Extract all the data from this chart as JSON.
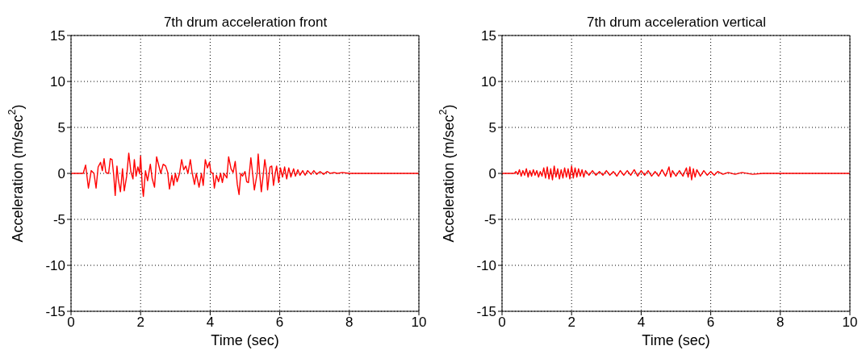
{
  "chart_data": [
    {
      "type": "line",
      "title": "7th drum acceleration front",
      "xlabel": "Time (sec)",
      "ylabel": "Acceleration (m/sec$^{2}$)",
      "xlim": [
        0,
        10
      ],
      "ylim": [
        -15,
        15
      ],
      "xticks": [
        0,
        2,
        4,
        6,
        8,
        10
      ],
      "yticks": [
        -15,
        -10,
        -5,
        0,
        5,
        10,
        15
      ],
      "grid": true,
      "marker": "none",
      "line_style": "solid",
      "series": [
        {
          "color": "#ff0000",
          "x": [
            0,
            0.35,
            0.42,
            0.5,
            0.58,
            0.66,
            0.72,
            0.78,
            0.85,
            0.9,
            0.95,
            1.0,
            1.08,
            1.13,
            1.18,
            1.23,
            1.27,
            1.32,
            1.36,
            1.42,
            1.48,
            1.53,
            1.6,
            1.66,
            1.72,
            1.78,
            1.82,
            1.87,
            1.92,
            1.97,
            2.0,
            2.05,
            2.08,
            2.14,
            2.2,
            2.28,
            2.33,
            2.4,
            2.46,
            2.52,
            2.58,
            2.65,
            2.72,
            2.78,
            2.83,
            2.9,
            2.95,
            3.0,
            3.05,
            3.12,
            3.18,
            3.24,
            3.3,
            3.36,
            3.43,
            3.48,
            3.55,
            3.6,
            3.68,
            3.75,
            3.8,
            3.86,
            3.92,
            3.98,
            4.02,
            4.08,
            4.12,
            4.18,
            4.24,
            4.3,
            4.35,
            4.4,
            4.48,
            4.53,
            4.6,
            4.66,
            4.72,
            4.78,
            4.83,
            4.88,
            4.93,
            5.0,
            5.05,
            5.1,
            5.17,
            5.22,
            5.27,
            5.35,
            5.38,
            5.43,
            5.47,
            5.53,
            5.57,
            5.62,
            5.65,
            5.72,
            5.77,
            5.82,
            5.87,
            5.91,
            5.97,
            6.02,
            6.08,
            6.14,
            6.2,
            6.26,
            6.32,
            6.4,
            6.45,
            6.52,
            6.58,
            6.66,
            6.73,
            6.8,
            6.9,
            6.98,
            7.06,
            7.16,
            7.26,
            7.36,
            7.46,
            7.56,
            7.66,
            7.8,
            8,
            10
          ],
          "values": [
            0,
            0,
            0.9,
            -1.6,
            0.3,
            0,
            -1.6,
            0.7,
            1.2,
            0.3,
            1.6,
            0.1,
            0,
            1.6,
            1.5,
            -0.3,
            -2.4,
            0.8,
            -0.7,
            -2.0,
            0.5,
            -1.9,
            -0.3,
            2.2,
            0.2,
            -0.6,
            1.5,
            -0.3,
            0.7,
            0,
            1.9,
            -1.5,
            -2.5,
            0.3,
            -0.8,
            1.0,
            -0.5,
            -1.5,
            1.8,
            0.9,
            0,
            1.0,
            0.8,
            0.1,
            -1.7,
            -0.2,
            -1.3,
            0,
            -0.9,
            0,
            1.5,
            0.4,
            0.8,
            0,
            1.5,
            0.1,
            -1.2,
            0,
            -1.5,
            0,
            -1.3,
            1.5,
            0.6,
            1.2,
            0.1,
            0,
            -1.6,
            -0.2,
            -0.9,
            0,
            -1.0,
            0,
            -0.5,
            1.8,
            0.5,
            0.1,
            1.3,
            -1.2,
            -2.3,
            0,
            -0.3,
            0.2,
            -0.9,
            -1.0,
            1.7,
            0,
            -1.8,
            0,
            2.1,
            -0.3,
            -2.0,
            0,
            1.5,
            0.2,
            -1.8,
            0.7,
            0.8,
            -1.3,
            0,
            0.8,
            -1.0,
            0.6,
            -0.4,
            0.7,
            -0.6,
            0.6,
            -0.4,
            0.5,
            -0.3,
            0.4,
            -0.2,
            0.3,
            -0.2,
            0.3,
            -0.1,
            0.3,
            -0.1,
            0.2,
            -0.1,
            0.2,
            0,
            0.1,
            0,
            0.1,
            0,
            0
          ]
        }
      ]
    },
    {
      "type": "line",
      "title": "7th drum acceleration vertical",
      "xlabel": "Time (sec)",
      "ylabel": "Acceleration (m/sec$^{2}$)",
      "xlim": [
        0,
        10
      ],
      "ylim": [
        -15,
        15
      ],
      "xticks": [
        0,
        2,
        4,
        6,
        8,
        10
      ],
      "yticks": [
        -15,
        -10,
        -5,
        0,
        5,
        10,
        15
      ],
      "grid": true,
      "marker": "none",
      "line_style": "solid",
      "series": [
        {
          "color": "#ff0000",
          "x": [
            0,
            0.35,
            0.4,
            0.45,
            0.5,
            0.55,
            0.6,
            0.65,
            0.7,
            0.75,
            0.8,
            0.85,
            0.9,
            0.95,
            1.0,
            1.05,
            1.1,
            1.15,
            1.2,
            1.25,
            1.3,
            1.35,
            1.4,
            1.45,
            1.5,
            1.55,
            1.6,
            1.65,
            1.7,
            1.75,
            1.8,
            1.85,
            1.9,
            1.95,
            2.0,
            2.05,
            2.1,
            2.15,
            2.2,
            2.25,
            2.3,
            2.35,
            2.4,
            2.5,
            2.6,
            2.7,
            2.8,
            2.9,
            3.0,
            3.1,
            3.2,
            3.3,
            3.4,
            3.5,
            3.6,
            3.7,
            3.8,
            3.9,
            4.0,
            4.1,
            4.2,
            4.3,
            4.4,
            4.5,
            4.6,
            4.7,
            4.8,
            4.85,
            4.9,
            5.0,
            5.1,
            5.2,
            5.3,
            5.35,
            5.4,
            5.45,
            5.5,
            5.55,
            5.6,
            5.7,
            5.8,
            5.9,
            6.0,
            6.1,
            6.2,
            6.35,
            6.5,
            6.7,
            6.9,
            7.2,
            7.5,
            8,
            10
          ],
          "values": [
            0,
            0,
            0.2,
            -0.1,
            0.4,
            -0.3,
            0.3,
            -0.2,
            0.5,
            -0.4,
            0.3,
            -0.3,
            0.4,
            -0.2,
            0.3,
            -0.4,
            0.2,
            -0.3,
            0.6,
            -0.5,
            0.7,
            -0.6,
            0.5,
            -0.7,
            0.8,
            -0.4,
            0.5,
            -0.6,
            0.4,
            -0.5,
            0.6,
            -0.4,
            0.5,
            -0.6,
            0.8,
            -0.5,
            0.6,
            -0.4,
            0.5,
            -0.3,
            0.4,
            -0.4,
            0.3,
            -0.2,
            0.3,
            -0.2,
            0.2,
            -0.2,
            0.3,
            -0.2,
            0.2,
            -0.3,
            0.3,
            -0.2,
            0.3,
            -0.2,
            0.4,
            -0.3,
            0.3,
            -0.2,
            0.3,
            -0.3,
            0.2,
            -0.3,
            0.4,
            -0.3,
            0.7,
            -0.4,
            0.3,
            -0.3,
            0.3,
            -0.3,
            0.6,
            -0.4,
            0.7,
            -0.7,
            0.5,
            -0.4,
            0.4,
            -0.3,
            0.3,
            -0.2,
            0.2,
            -0.2,
            0.2,
            -0.1,
            0.1,
            -0.1,
            0.1,
            -0.1,
            0,
            0,
            0
          ]
        }
      ]
    }
  ]
}
